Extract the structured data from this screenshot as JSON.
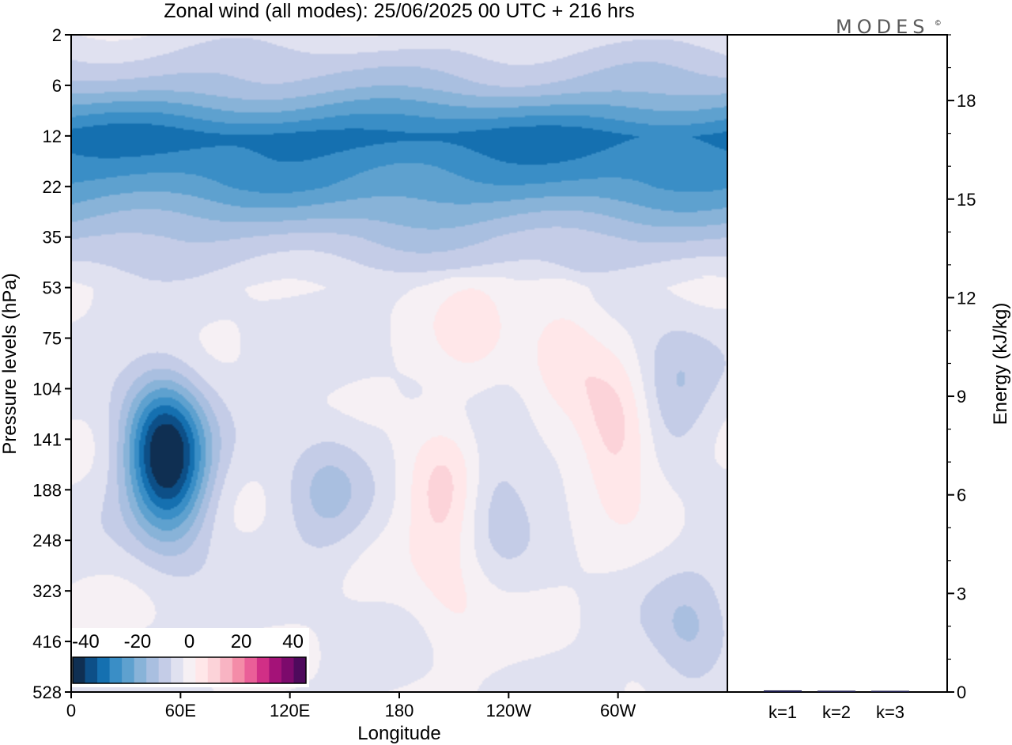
{
  "title": "Zonal wind (all modes):  25/06/2025  00 UTC  + 216 hrs",
  "brand": "MODES",
  "brand_mark": "©",
  "chart_data": [
    {
      "type": "heatmap",
      "title": "Zonal wind (all modes):  25/06/2025  00 UTC  + 216 hrs",
      "xlabel": "Longitude",
      "ylabel": "Pressure levels (hPa)",
      "x_ticks": [
        "0",
        "60E",
        "120E",
        "180",
        "120W",
        "60W"
      ],
      "y_ticks": [
        "2",
        "6",
        "12",
        "22",
        "35",
        "53",
        "75",
        "104",
        "141",
        "188",
        "248",
        "323",
        "416",
        "528"
      ],
      "colorbar": {
        "ticks": [
          "-40",
          "-20",
          "0",
          "20",
          "40"
        ],
        "range": [
          -45,
          45
        ],
        "colors": [
          "#0f2f52",
          "#0d4f87",
          "#1570b0",
          "#3a8ec6",
          "#5ea1cf",
          "#88b3d8",
          "#a9bfe0",
          "#c4cce7",
          "#e0e1f0",
          "#f6f0f4",
          "#ffe7e9",
          "#fcd3d9",
          "#f8b4c3",
          "#f48ca8",
          "#ea5f98",
          "#d12f86",
          "#a41278",
          "#7c0a6c",
          "#4e0a5c"
        ]
      },
      "field": {
        "x_range_deg": [
          0,
          360
        ],
        "levels": [
          "2",
          "6",
          "12",
          "22",
          "35",
          "53",
          "75",
          "104",
          "141",
          "188",
          "248",
          "323",
          "416",
          "528"
        ],
        "background_value": -3,
        "bands": [
          {
            "level": "2",
            "value": -4
          },
          {
            "level": "6",
            "value": -14
          },
          {
            "level": "12",
            "value": -33
          },
          {
            "level": "22",
            "value": -25
          },
          {
            "level": "35",
            "value": -12
          },
          {
            "level": "53",
            "value": -3
          }
        ],
        "features": [
          {
            "center": [
              "50E",
              "141"
            ],
            "value": -30
          },
          {
            "center": [
              "55E",
              "188"
            ],
            "value": -20
          },
          {
            "center": [
              "155W",
              "188"
            ],
            "value": 12
          },
          {
            "center": [
              "60W",
              "141"
            ],
            "value": 14
          },
          {
            "center": [
              "140W",
              "75"
            ],
            "value": 7
          },
          {
            "center": [
              "90W",
              "75"
            ],
            "value": 8
          },
          {
            "center": [
              "130W",
              "188"
            ],
            "value": -9
          },
          {
            "center": [
              "30W",
              "104"
            ],
            "value": -9
          },
          {
            "center": [
              "140E",
              "188"
            ],
            "value": -9
          },
          {
            "center": [
              "20W",
              "416"
            ],
            "value": -9
          },
          {
            "center": [
              "150W",
              "323"
            ],
            "value": 6
          }
        ]
      }
    },
    {
      "type": "bar",
      "ylabel": "Energy (kJ/kg)",
      "categories": [
        "k=1",
        "k=2",
        "k=3"
      ],
      "values": [
        0.02,
        0.01,
        0.005
      ],
      "ylim": [
        0,
        20
      ],
      "y_ticks": [
        "0",
        "3",
        "6",
        "9",
        "12",
        "15",
        "18"
      ],
      "bar_color": "#1a1a4a"
    }
  ]
}
